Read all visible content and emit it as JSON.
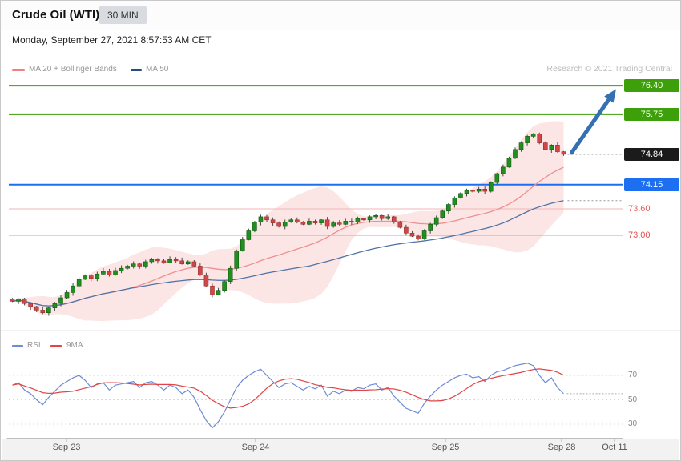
{
  "header": {
    "title": "Crude Oil (WTI)",
    "timeframe": "30 MIN"
  },
  "datetime": "Monday, September 27, 2021 8:57:53 AM CET",
  "legend": {
    "ma20": "MA 20 + Bollinger Bands",
    "ma50": "MA 50"
  },
  "watermark": "Research © 2021 Trading Central",
  "rsi_legend": {
    "rsi": "RSI",
    "ma9": "9MA"
  },
  "colors": {
    "candle_up": "#1f8f1f",
    "candle_up_border": "#0e5c0e",
    "candle_down": "#cf4747",
    "candle_down_border": "#9c2c2c",
    "wick": "#4a4a4a",
    "ma20": "#ef8f8f",
    "ma50": "#4f74a8",
    "bollinger_fill": "rgba(244,150,150,0.25)",
    "rsi": "#6f8bd6",
    "rsi_ma": "#e04444",
    "arrow": "#3470b2",
    "legend_ma20_swatch": "#f08080",
    "legend_ma50_swatch": "#2b4a7d",
    "legend_rsi_swatch": "#6f8bd6",
    "legend_ma9_swatch": "#e04444"
  },
  "axis": {
    "x_labels": [
      {
        "label": "Sep 23",
        "x": 82
      },
      {
        "label": "Sep 24",
        "x": 318
      },
      {
        "label": "Sep 25",
        "x": 555
      },
      {
        "label": "Sep 28",
        "x": 700
      },
      {
        "label": "Oct 11",
        "x": 766
      }
    ]
  },
  "chart_data": {
    "type": "candlestick",
    "title": "Crude Oil (WTI) 30 MIN",
    "interval": "30 MIN",
    "x_axis_labels": [
      "Sep 23",
      "Sep 24",
      "Sep 25",
      "Sep 28",
      "Oct 11"
    ],
    "price_panel": {
      "ylim": [
        71.0,
        76.6
      ],
      "indicators": [
        "MA 20 + Bollinger Bands",
        "MA 50"
      ],
      "levels": [
        {
          "value": 76.4,
          "label": "76.40",
          "role": "resistance",
          "line_color": "#3da00a",
          "line_width": 2,
          "label_type": "box",
          "label_bg": "#3da00a"
        },
        {
          "value": 75.75,
          "label": "75.75",
          "role": "resistance",
          "line_color": "#3da00a",
          "line_width": 2,
          "label_type": "box",
          "label_bg": "#3da00a"
        },
        {
          "value": 74.15,
          "label": "74.15",
          "role": "support",
          "line_color": "#1d6ff2",
          "line_width": 2,
          "label_type": "box",
          "label_bg": "#1d6ff2"
        },
        {
          "value": 73.6,
          "label": "73.60",
          "role": "support",
          "line_color": "#f2b6b6",
          "line_width": 1,
          "label_type": "text",
          "label_color": "#e06060"
        },
        {
          "value": 73.0,
          "label": "73.00",
          "role": "support",
          "line_color": "#eb9393",
          "line_width": 1,
          "label_type": "text",
          "label_color": "#e04f4f"
        }
      ],
      "last": {
        "value": 74.84,
        "label": "74.84",
        "label_bg": "#1b1b1b"
      },
      "arrow": {
        "from": 74.84,
        "to": 76.4,
        "direction": "up"
      },
      "closes": [
        71.5,
        71.55,
        71.45,
        71.38,
        71.3,
        71.24,
        71.35,
        71.45,
        71.58,
        71.7,
        71.85,
        72.0,
        72.08,
        72.02,
        72.12,
        72.18,
        72.1,
        72.2,
        72.25,
        72.3,
        72.35,
        72.3,
        72.4,
        72.45,
        72.42,
        72.38,
        72.45,
        72.42,
        72.35,
        72.4,
        72.3,
        72.1,
        71.85,
        71.65,
        71.75,
        71.95,
        72.25,
        72.65,
        72.9,
        73.1,
        73.3,
        73.42,
        73.35,
        73.28,
        73.2,
        73.3,
        73.35,
        73.3,
        73.25,
        73.32,
        73.28,
        73.35,
        73.2,
        73.28,
        73.25,
        73.32,
        73.3,
        73.38,
        73.35,
        73.42,
        73.45,
        73.38,
        73.42,
        73.3,
        73.18,
        73.05,
        72.98,
        72.92,
        73.1,
        73.25,
        73.4,
        73.55,
        73.7,
        73.85,
        73.95,
        74.02,
        74.0,
        74.05,
        74.0,
        74.2,
        74.4,
        74.55,
        74.75,
        74.95,
        75.1,
        75.25,
        75.3,
        75.1,
        74.95,
        75.05,
        74.9,
        74.84
      ],
      "ma20_window": 20,
      "ma50_window": 50,
      "bollinger_sigma": 2
    },
    "rsi_panel": {
      "ylim": [
        20,
        90
      ],
      "ticks": [
        70,
        50,
        30
      ],
      "ma_window": 9,
      "rsi": [
        62,
        64,
        58,
        55,
        50,
        46,
        52,
        57,
        62,
        65,
        68,
        70,
        66,
        60,
        63,
        64,
        58,
        62,
        63,
        64,
        65,
        60,
        64,
        65,
        62,
        58,
        62,
        60,
        55,
        58,
        52,
        42,
        33,
        27,
        32,
        40,
        50,
        60,
        66,
        70,
        73,
        75,
        70,
        65,
        60,
        63,
        64,
        61,
        58,
        61,
        59,
        62,
        53,
        57,
        55,
        58,
        57,
        60,
        59,
        62,
        63,
        58,
        60,
        53,
        48,
        43,
        41,
        39,
        47,
        53,
        58,
        62,
        65,
        68,
        70,
        71,
        68,
        69,
        65,
        70,
        73,
        74,
        76,
        78,
        79,
        80,
        78,
        70,
        64,
        68,
        60,
        55
      ]
    }
  }
}
